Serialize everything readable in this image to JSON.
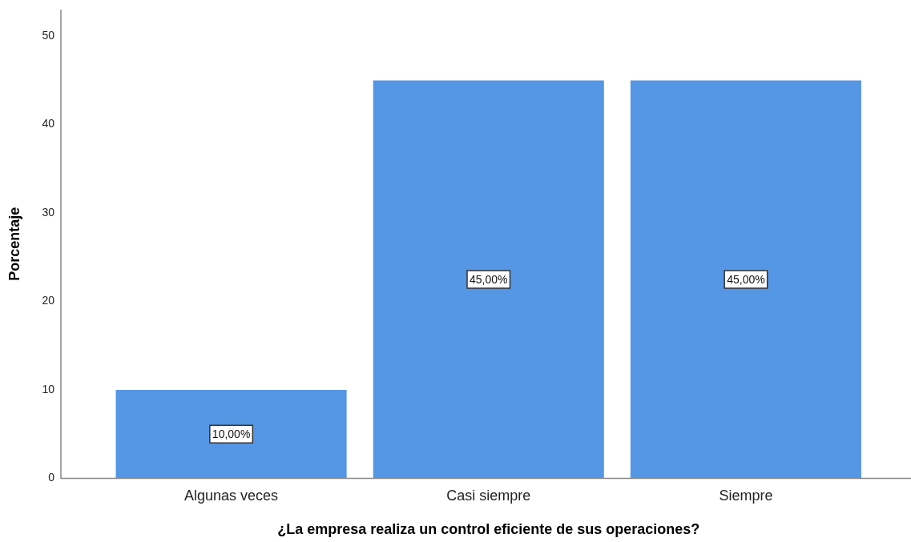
{
  "chart_data": {
    "type": "bar",
    "xlabel": "¿La empresa realiza un control eficiente de sus operaciones?",
    "ylabel": "Porcentaje",
    "categories": [
      "Algunas veces",
      "Casi siempre",
      "Siempre"
    ],
    "values": [
      10,
      45,
      45
    ],
    "color": "#5596e5",
    "value_labels": [
      "10,00%",
      "45,00%",
      "45,00%"
    ],
    "ylim": [
      0,
      53
    ],
    "yticks": [
      0,
      10,
      20,
      30,
      40,
      50
    ]
  }
}
